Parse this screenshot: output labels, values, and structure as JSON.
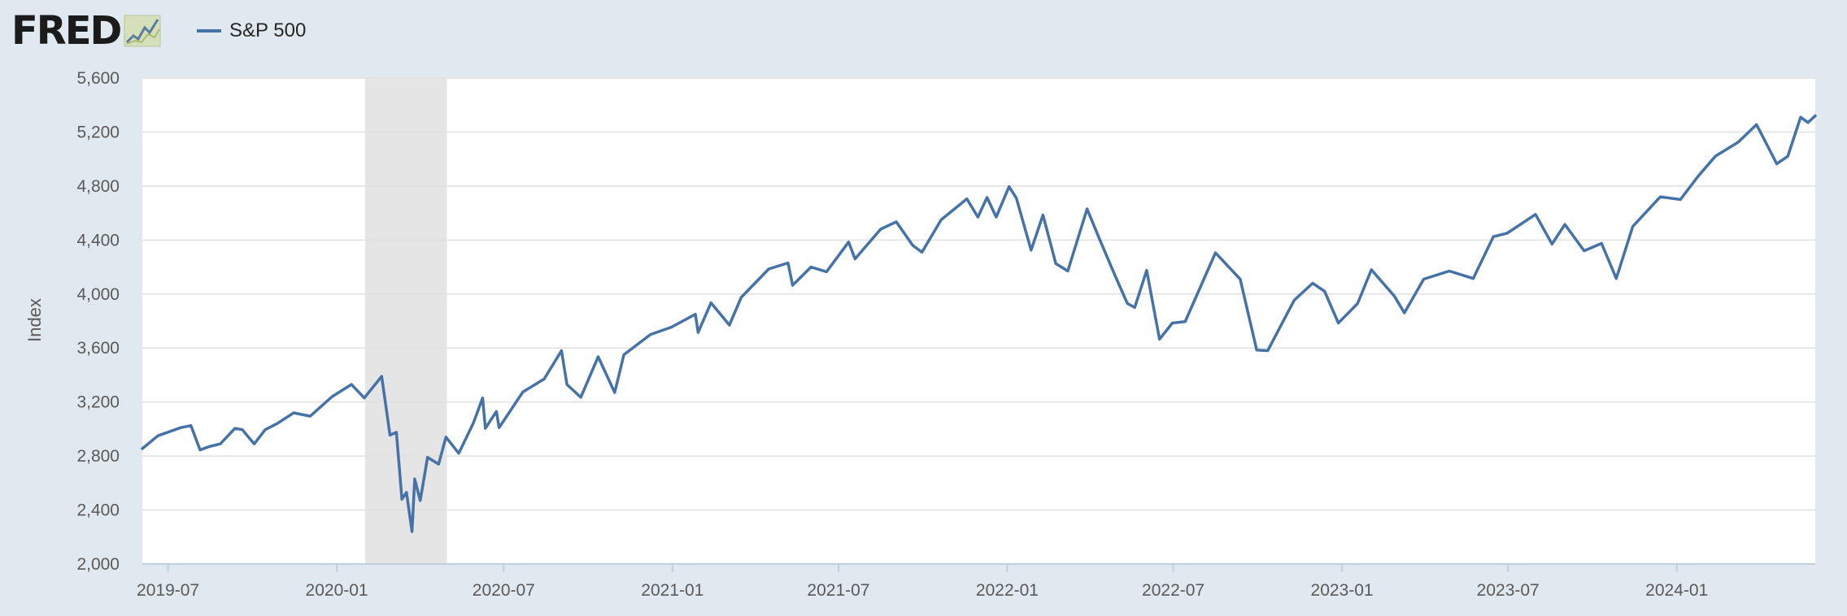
{
  "header": {
    "logo_text": "FRED",
    "logo_icon": "fred-chart-icon"
  },
  "legend": {
    "label": "S&P 500",
    "color": "#4572a7"
  },
  "chart_data": {
    "type": "line",
    "title": "",
    "xlabel": "",
    "ylabel": "Index",
    "ylim": [
      2000,
      5600
    ],
    "xlim": [
      "2019-06-03",
      "2024-05-31"
    ],
    "y_ticks": [
      2000,
      2400,
      2800,
      3200,
      3600,
      4000,
      4400,
      4800,
      5200,
      5600
    ],
    "y_tick_labels": [
      "2,000",
      "2,400",
      "2,800",
      "3,200",
      "3,600",
      "4,000",
      "4,400",
      "4,800",
      "5,200",
      "5,600"
    ],
    "x_ticks": [
      "2019-07-01",
      "2020-01-01",
      "2020-07-01",
      "2021-01-01",
      "2021-07-01",
      "2022-01-01",
      "2022-07-01",
      "2023-01-01",
      "2023-07-01",
      "2024-01-01"
    ],
    "x_tick_labels": [
      "2019-07",
      "2020-01",
      "2020-07",
      "2021-01",
      "2021-07",
      "2022-01",
      "2022-07",
      "2023-01",
      "2023-07",
      "2024-01"
    ],
    "grid": true,
    "legend_position": "top-left",
    "recession_shading": [
      {
        "start": "2020-02-01",
        "end": "2020-04-30"
      }
    ],
    "series": [
      {
        "name": "S&P 500",
        "color": "#4572a7",
        "points": [
          [
            "2019-06-03",
            2855
          ],
          [
            "2019-06-20",
            2950
          ],
          [
            "2019-07-15",
            3010
          ],
          [
            "2019-07-26",
            3025
          ],
          [
            "2019-08-05",
            2845
          ],
          [
            "2019-08-15",
            2870
          ],
          [
            "2019-08-27",
            2890
          ],
          [
            "2019-09-12",
            3005
          ],
          [
            "2019-09-20",
            2995
          ],
          [
            "2019-10-03",
            2890
          ],
          [
            "2019-10-15",
            2995
          ],
          [
            "2019-10-28",
            3040
          ],
          [
            "2019-11-15",
            3120
          ],
          [
            "2019-12-03",
            3095
          ],
          [
            "2019-12-27",
            3240
          ],
          [
            "2020-01-17",
            3330
          ],
          [
            "2020-01-31",
            3230
          ],
          [
            "2020-02-19",
            3390
          ],
          [
            "2020-02-28",
            2955
          ],
          [
            "2020-03-06",
            2975
          ],
          [
            "2020-03-12",
            2480
          ],
          [
            "2020-03-17",
            2530
          ],
          [
            "2020-03-23",
            2240
          ],
          [
            "2020-03-26",
            2630
          ],
          [
            "2020-04-01",
            2470
          ],
          [
            "2020-04-09",
            2790
          ],
          [
            "2020-04-21",
            2740
          ],
          [
            "2020-04-29",
            2940
          ],
          [
            "2020-05-13",
            2820
          ],
          [
            "2020-05-29",
            3045
          ],
          [
            "2020-06-08",
            3230
          ],
          [
            "2020-06-11",
            3005
          ],
          [
            "2020-06-23",
            3130
          ],
          [
            "2020-06-26",
            3010
          ],
          [
            "2020-07-22",
            3275
          ],
          [
            "2020-08-14",
            3370
          ],
          [
            "2020-09-02",
            3580
          ],
          [
            "2020-09-08",
            3330
          ],
          [
            "2020-09-23",
            3235
          ],
          [
            "2020-10-12",
            3535
          ],
          [
            "2020-10-30",
            3270
          ],
          [
            "2020-11-09",
            3550
          ],
          [
            "2020-12-08",
            3700
          ],
          [
            "2020-12-31",
            3755
          ],
          [
            "2021-01-26",
            3850
          ],
          [
            "2021-01-29",
            3715
          ],
          [
            "2021-02-12",
            3935
          ],
          [
            "2021-03-04",
            3770
          ],
          [
            "2021-03-17",
            3975
          ],
          [
            "2021-04-16",
            4185
          ],
          [
            "2021-05-07",
            4230
          ],
          [
            "2021-05-12",
            4065
          ],
          [
            "2021-06-01",
            4200
          ],
          [
            "2021-06-18",
            4165
          ],
          [
            "2021-07-12",
            4385
          ],
          [
            "2021-07-19",
            4260
          ],
          [
            "2021-08-16",
            4480
          ],
          [
            "2021-09-02",
            4535
          ],
          [
            "2021-09-20",
            4360
          ],
          [
            "2021-09-30",
            4310
          ],
          [
            "2021-10-21",
            4550
          ],
          [
            "2021-11-18",
            4705
          ],
          [
            "2021-11-30",
            4570
          ],
          [
            "2021-12-10",
            4715
          ],
          [
            "2021-12-20",
            4570
          ],
          [
            "2022-01-03",
            4795
          ],
          [
            "2022-01-11",
            4710
          ],
          [
            "2022-01-27",
            4325
          ],
          [
            "2022-02-09",
            4585
          ],
          [
            "2022-02-23",
            4225
          ],
          [
            "2022-03-08",
            4170
          ],
          [
            "2022-03-29",
            4630
          ],
          [
            "2022-04-12",
            4400
          ],
          [
            "2022-04-29",
            4130
          ],
          [
            "2022-05-12",
            3930
          ],
          [
            "2022-05-20",
            3900
          ],
          [
            "2022-06-02",
            4175
          ],
          [
            "2022-06-16",
            3665
          ],
          [
            "2022-06-30",
            3785
          ],
          [
            "2022-07-14",
            3795
          ],
          [
            "2022-08-16",
            4305
          ],
          [
            "2022-09-12",
            4110
          ],
          [
            "2022-09-30",
            3585
          ],
          [
            "2022-10-12",
            3580
          ],
          [
            "2022-11-10",
            3955
          ],
          [
            "2022-11-30",
            4080
          ],
          [
            "2022-12-13",
            4020
          ],
          [
            "2022-12-28",
            3785
          ],
          [
            "2023-01-18",
            3930
          ],
          [
            "2023-02-02",
            4180
          ],
          [
            "2023-02-27",
            3985
          ],
          [
            "2023-03-10",
            3860
          ],
          [
            "2023-03-31",
            4110
          ],
          [
            "2023-04-28",
            4170
          ],
          [
            "2023-05-24",
            4115
          ],
          [
            "2023-06-15",
            4425
          ],
          [
            "2023-06-30",
            4450
          ],
          [
            "2023-07-31",
            4590
          ],
          [
            "2023-08-18",
            4370
          ],
          [
            "2023-09-01",
            4515
          ],
          [
            "2023-09-22",
            4320
          ],
          [
            "2023-10-11",
            4375
          ],
          [
            "2023-10-27",
            4115
          ],
          [
            "2023-11-14",
            4500
          ],
          [
            "2023-12-14",
            4720
          ],
          [
            "2024-01-05",
            4700
          ],
          [
            "2024-01-24",
            4870
          ],
          [
            "2024-02-12",
            5020
          ],
          [
            "2024-03-08",
            5125
          ],
          [
            "2024-03-28",
            5255
          ],
          [
            "2024-04-19",
            4965
          ],
          [
            "2024-05-01",
            5020
          ],
          [
            "2024-05-15",
            5310
          ],
          [
            "2024-05-23",
            5270
          ],
          [
            "2024-05-31",
            5320
          ]
        ]
      }
    ]
  }
}
